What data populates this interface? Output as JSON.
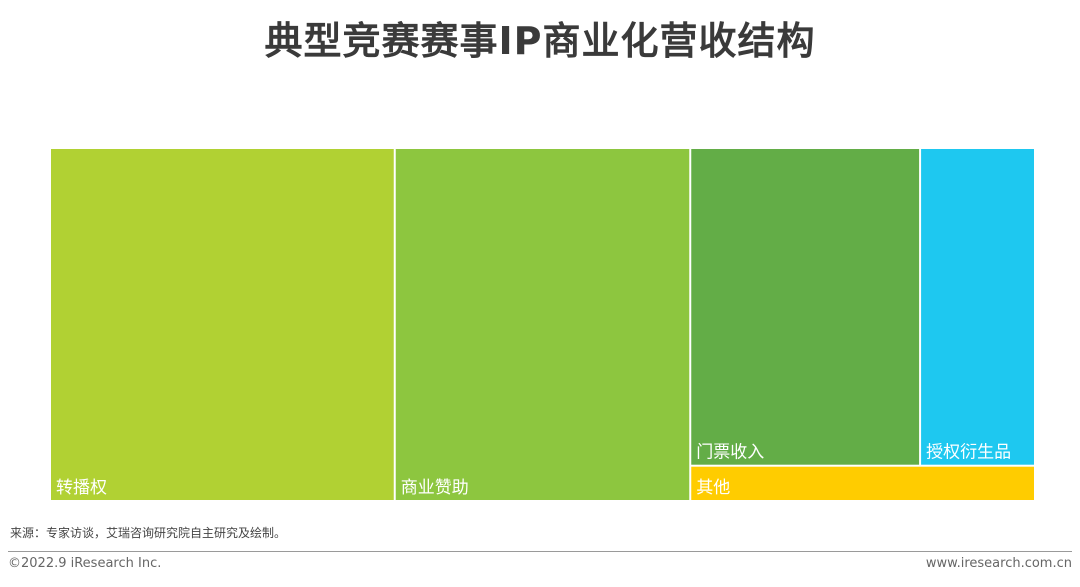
{
  "title": "典型竞赛赛事IP商业化营收结构",
  "chart_data": {
    "type": "treemap",
    "title": "典型竞赛赛事IP商业化营收结构",
    "items": [
      {
        "name": "转播权",
        "value": 35.0,
        "color": "#b1d133"
      },
      {
        "name": "商业赞助",
        "value": 30.0,
        "color": "#8dc63f"
      },
      {
        "name": "门票收入",
        "value": 21.0,
        "color": "#63ad47"
      },
      {
        "name": "其他",
        "value": 3.5,
        "color": "#ffcc00"
      },
      {
        "name": "授权衍生品",
        "value": 10.5,
        "color": "#1ec8f0"
      }
    ]
  },
  "footer": {
    "source": "来源：专家访谈，艾瑞咨询研究院自主研究及绘制。",
    "copyright": "©2022.9 iResearch Inc.",
    "website": "www.iresearch.com.cn"
  }
}
